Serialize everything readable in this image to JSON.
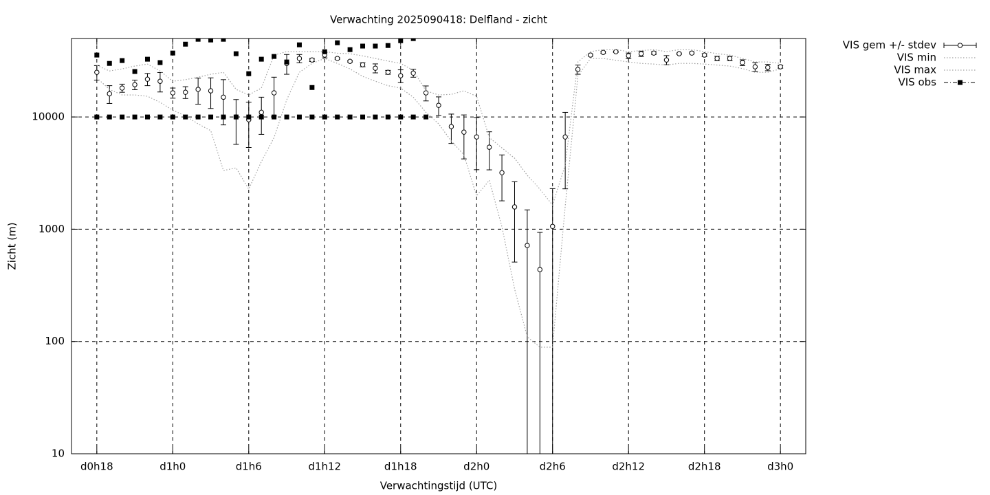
{
  "chart_data": {
    "type": "line",
    "title": "Verwachting 2025090418: Delfland - zicht",
    "xlabel": "Verwachtingstijd (UTC)",
    "ylabel": "Zicht (m)",
    "log_scale": true,
    "grid": true,
    "legend": "outside-top-right",
    "xlim": [
      16,
      74
    ],
    "ylim": [
      10,
      50000
    ],
    "xticks": [
      {
        "value": 18,
        "label": "d0h18"
      },
      {
        "value": 24,
        "label": "d1h0"
      },
      {
        "value": 30,
        "label": "d1h6"
      },
      {
        "value": 36,
        "label": "d1h12"
      },
      {
        "value": 42,
        "label": "d1h18"
      },
      {
        "value": 48,
        "label": "d2h0"
      },
      {
        "value": 54,
        "label": "d2h6"
      },
      {
        "value": 60,
        "label": "d2h12"
      },
      {
        "value": 66,
        "label": "d2h18"
      },
      {
        "value": 72,
        "label": "d3h0"
      }
    ],
    "yticks": [
      10,
      100,
      1000,
      10000
    ],
    "x": [
      18,
      19,
      20,
      21,
      22,
      23,
      24,
      25,
      26,
      27,
      28,
      29,
      30,
      31,
      32,
      33,
      34,
      35,
      36,
      37,
      38,
      39,
      40,
      41,
      42,
      43,
      44,
      45,
      46,
      47,
      48,
      49,
      50,
      51,
      52,
      53,
      54,
      55,
      56,
      57,
      58,
      59,
      60,
      61,
      62,
      63,
      64,
      65,
      66,
      67,
      68,
      69,
      70,
      71,
      72
    ],
    "series": [
      {
        "name": "VIS gem +/- stdev",
        "color": "#000000",
        "style": "errorbars",
        "values": [
          25000,
          16100,
          18100,
          19400,
          21700,
          20800,
          16400,
          16600,
          17600,
          17100,
          15000,
          10000,
          9450,
          11000,
          16400,
          30000,
          33200,
          32200,
          35600,
          33200,
          31300,
          29200,
          27200,
          25000,
          23300,
          24600,
          16400,
          12700,
          8210,
          7330,
          6640,
          5380,
          3190,
          1580,
          717,
          437,
          1060,
          6640,
          26500,
          35600,
          37600,
          38100,
          35100,
          36600,
          37100,
          32200,
          36600,
          37100,
          35600,
          33200,
          33200,
          30500,
          28000,
          27600,
          28000
        ],
        "errors": [
          3700,
          2900,
          1500,
          1900,
          2700,
          4100,
          1700,
          2000,
          4600,
          5200,
          6500,
          4300,
          4100,
          4000,
          6200,
          6000,
          2800,
          1000,
          2000,
          500,
          500,
          1200,
          2500,
          1000,
          3000,
          2000,
          2500,
          2400,
          2400,
          3100,
          3250,
          2000,
          1400,
          1070,
          770,
          500,
          1240,
          4350,
          2500,
          700,
          700,
          500,
          2000,
          2000,
          1000,
          3000,
          500,
          700,
          1000,
          1500,
          1500,
          1800,
          2500,
          1800,
          800
        ]
      },
      {
        "name": "VIS min",
        "color": "#a0a0a0",
        "style": "dotted",
        "values": [
          22300,
          17600,
          15700,
          15700,
          15300,
          13500,
          11500,
          10200,
          8690,
          7550,
          3330,
          3520,
          2280,
          4000,
          6550,
          14200,
          25000,
          30000,
          33200,
          30000,
          26800,
          23000,
          20800,
          19000,
          18100,
          15000,
          11000,
          8690,
          6100,
          4600,
          1980,
          2730,
          1050,
          294,
          110,
          89,
          89,
          1600,
          23300,
          33200,
          33200,
          32000,
          30900,
          30000,
          29600,
          29000,
          30000,
          30000,
          29600,
          29000,
          28400,
          27000,
          25000,
          25000,
          26800
        ]
      },
      {
        "name": "VIS max",
        "color": "#a0a0a0",
        "style": "dotted",
        "values": [
          28800,
          25700,
          26800,
          28400,
          29600,
          25700,
          20800,
          21500,
          22600,
          24000,
          25000,
          17600,
          15700,
          18100,
          35600,
          38200,
          38200,
          38200,
          38200,
          37000,
          36600,
          35000,
          33200,
          31500,
          30000,
          26000,
          17100,
          15700,
          15900,
          17100,
          15300,
          6550,
          5300,
          4290,
          3020,
          2280,
          1640,
          3730,
          30900,
          38200,
          39800,
          39800,
          38200,
          39000,
          39800,
          38200,
          39800,
          39800,
          38200,
          36600,
          35600,
          33200,
          30900,
          30900,
          30000
        ]
      },
      {
        "name": "VIS obs",
        "color": "#000000",
        "style": "points",
        "x": [
          18,
          19,
          20,
          21,
          22,
          23,
          24,
          25,
          26,
          27,
          28,
          29,
          30,
          31,
          32,
          33,
          34,
          35,
          36,
          37,
          38,
          39,
          40,
          41,
          42,
          43,
          18,
          19,
          20,
          21,
          22,
          23,
          24,
          25,
          26,
          27,
          28,
          29,
          30,
          31,
          32,
          33,
          34,
          35,
          36,
          37,
          38,
          39,
          40,
          41,
          42,
          43,
          44
        ],
        "values": [
          35600,
          30000,
          31800,
          25400,
          32700,
          30500,
          37100,
          44500,
          49200,
          48500,
          49200,
          36600,
          24300,
          32700,
          34600,
          30900,
          43900,
          18300,
          38100,
          45800,
          39800,
          42800,
          42800,
          43300,
          47800,
          49900,
          10000,
          10000,
          10000,
          10000,
          10000,
          10000,
          10000,
          10000,
          10000,
          10000,
          10000,
          10000,
          10000,
          10000,
          10000,
          10000,
          10000,
          10000,
          10000,
          10000,
          10000,
          10000,
          10000,
          10000,
          10000,
          10000,
          10000
        ]
      }
    ]
  }
}
